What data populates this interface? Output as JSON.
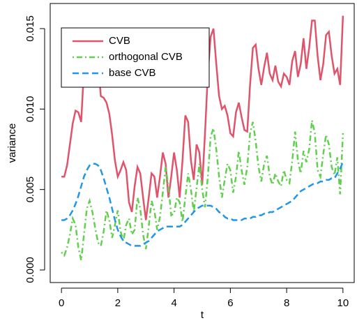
{
  "chart_data": {
    "type": "line",
    "x_label": "t",
    "y_label": "variance",
    "x": [
      0,
      0.1,
      0.2,
      0.3,
      0.4,
      0.5,
      0.6,
      0.7,
      0.8,
      0.9,
      1,
      1.1,
      1.2,
      1.3,
      1.4,
      1.5,
      1.6,
      1.7,
      1.8,
      1.9,
      2,
      2.1,
      2.2,
      2.3,
      2.4,
      2.5,
      2.6,
      2.7,
      2.8,
      2.9,
      3,
      3.1,
      3.2,
      3.3,
      3.4,
      3.5,
      3.6,
      3.7,
      3.8,
      3.9,
      4,
      4.1,
      4.2,
      4.3,
      4.4,
      4.5,
      4.6,
      4.7,
      4.8,
      4.9,
      5,
      5.1,
      5.2,
      5.3,
      5.4,
      5.5,
      5.6,
      5.7,
      5.8,
      5.9,
      6,
      6.1,
      6.2,
      6.3,
      6.4,
      6.5,
      6.6,
      6.7,
      6.8,
      6.9,
      7,
      7.1,
      7.2,
      7.3,
      7.4,
      7.5,
      7.6,
      7.7,
      7.8,
      7.9,
      8,
      8.1,
      8.2,
      8.3,
      8.4,
      8.5,
      8.6,
      8.7,
      8.8,
      8.9,
      9,
      9.1,
      9.2,
      9.3,
      9.4,
      9.5,
      9.6,
      9.7,
      9.8,
      9.9,
      10
    ],
    "series": [
      {
        "name": "CVB",
        "color": "#DF536B",
        "line_style": "solid",
        "values": [
          0.0058,
          0.0058,
          0.0065,
          0.0078,
          0.0091,
          0.0099,
          0.0098,
          0.0092,
          0.0125,
          0.0145,
          0.015,
          0.015,
          0.0145,
          0.0128,
          0.0108,
          0.0107,
          0.0104,
          0.0097,
          0.0084,
          0.0068,
          0.0058,
          0.0062,
          0.0067,
          0.0062,
          0.0042,
          0.0036,
          0.0052,
          0.0064,
          0.006,
          0.0045,
          0.0031,
          0.0045,
          0.006,
          0.0058,
          0.0045,
          0.0058,
          0.0073,
          0.0066,
          0.0045,
          0.0058,
          0.0073,
          0.0062,
          0.0045,
          0.0068,
          0.0096,
          0.0092,
          0.0068,
          0.0056,
          0.0078,
          0.0073,
          0.0053,
          0.0085,
          0.0122,
          0.0145,
          0.015,
          0.0128,
          0.0108,
          0.01,
          0.0102,
          0.0096,
          0.0085,
          0.0083,
          0.0098,
          0.0104,
          0.0095,
          0.0087,
          0.0086,
          0.0115,
          0.0138,
          0.014,
          0.0125,
          0.0115,
          0.0126,
          0.0135,
          0.0122,
          0.0118,
          0.0127,
          0.0117,
          0.0114,
          0.0122,
          0.012,
          0.0115,
          0.013,
          0.0136,
          0.012,
          0.0128,
          0.0144,
          0.0125,
          0.0138,
          0.0155,
          0.0155,
          0.0133,
          0.0118,
          0.0128,
          0.0146,
          0.0148,
          0.0133,
          0.0122,
          0.0125,
          0.0115,
          0.0158
        ]
      },
      {
        "name": "orthogonal CVB",
        "color": "#61D04F",
        "line_style": "dotdash",
        "values": [
          0.0011,
          0.0009,
          0.0014,
          0.0022,
          0.0032,
          0.0028,
          0.0014,
          0.0006,
          0.0022,
          0.0038,
          0.0043,
          0.0036,
          0.0026,
          0.0017,
          0.0015,
          0.0024,
          0.0037,
          0.0031,
          0.002,
          0.0028,
          0.0037,
          0.0024,
          0.0018,
          0.0028,
          0.0032,
          0.0022,
          0.0025,
          0.0045,
          0.0038,
          0.0022,
          0.0013,
          0.0027,
          0.0043,
          0.0037,
          0.0025,
          0.0033,
          0.0048,
          0.0064,
          0.0052,
          0.0034,
          0.0035,
          0.0045,
          0.0042,
          0.003,
          0.0045,
          0.006,
          0.005,
          0.0036,
          0.0051,
          0.0066,
          0.005,
          0.0039,
          0.0058,
          0.0083,
          0.0088,
          0.0075,
          0.0058,
          0.0045,
          0.0056,
          0.0066,
          0.0062,
          0.0048,
          0.0058,
          0.0074,
          0.0062,
          0.0053,
          0.0064,
          0.0085,
          0.0092,
          0.008,
          0.0064,
          0.0055,
          0.0066,
          0.0071,
          0.0058,
          0.0053,
          0.006,
          0.0055,
          0.0052,
          0.0062,
          0.0056,
          0.0054,
          0.0068,
          0.0086,
          0.0068,
          0.006,
          0.0074,
          0.0067,
          0.0075,
          0.0093,
          0.0085,
          0.0062,
          0.0058,
          0.0072,
          0.0084,
          0.0078,
          0.0064,
          0.0059,
          0.007,
          0.0047,
          0.0085
        ]
      },
      {
        "name": "base CVB",
        "color": "#2297E6",
        "line_style": "dashed",
        "values": [
          0.0031,
          0.0031,
          0.0032,
          0.0034,
          0.0037,
          0.0041,
          0.0046,
          0.0052,
          0.0058,
          0.0062,
          0.0065,
          0.0066,
          0.0066,
          0.0065,
          0.0062,
          0.0057,
          0.0051,
          0.0045,
          0.0038,
          0.0031,
          0.0025,
          0.0021,
          0.0018,
          0.0017,
          0.0016,
          0.0015,
          0.0015,
          0.0015,
          0.0015,
          0.0016,
          0.0017,
          0.0018,
          0.002,
          0.0022,
          0.0024,
          0.0025,
          0.0026,
          0.0027,
          0.0027,
          0.0027,
          0.0027,
          0.0027,
          0.0027,
          0.0028,
          0.003,
          0.0032,
          0.0034,
          0.0036,
          0.0038,
          0.0039,
          0.004,
          0.004,
          0.004,
          0.004,
          0.0039,
          0.0038,
          0.0036,
          0.0035,
          0.0033,
          0.0032,
          0.0032,
          0.0031,
          0.0031,
          0.0031,
          0.0031,
          0.0032,
          0.0032,
          0.0032,
          0.0033,
          0.0033,
          0.0034,
          0.0034,
          0.0035,
          0.0035,
          0.0036,
          0.0036,
          0.0037,
          0.0038,
          0.0039,
          0.004,
          0.0041,
          0.0042,
          0.0043,
          0.0045,
          0.0047,
          0.0049,
          0.005,
          0.0051,
          0.0052,
          0.0053,
          0.0054,
          0.0054,
          0.0055,
          0.0055,
          0.0056,
          0.0056,
          0.0057,
          0.0057,
          0.006,
          0.0063,
          0.0067
        ]
      }
    ],
    "xlim": [
      -0.4,
      10.4
    ],
    "xticks": [
      0,
      2,
      4,
      6,
      8,
      10
    ],
    "ylim": [
      -0.00078,
      0.01656
    ],
    "yticks": [
      {
        "value": 0,
        "label": "0.000"
      },
      {
        "value": 0.005,
        "label": "0.005"
      },
      {
        "value": 0.01,
        "label": "0.010"
      },
      {
        "value": 0.015,
        "label": "0.015"
      }
    ],
    "grid": false,
    "legend": "top-left"
  }
}
